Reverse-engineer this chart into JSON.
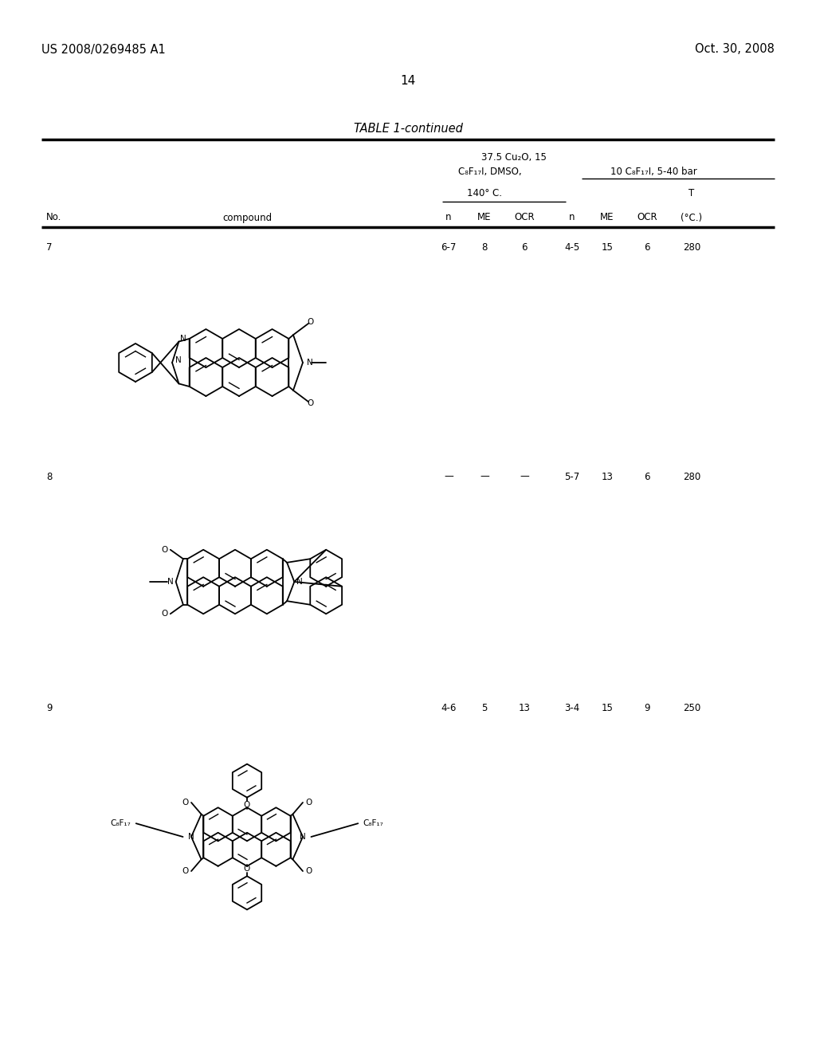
{
  "patent_left": "US 2008/0269485 A1",
  "patent_right": "Oct. 30, 2008",
  "page_number": "14",
  "table_title": "TABLE 1-continued",
  "header1": "37.5 Cu₂O, 15",
  "header2": "C₈F₁₇I, DMSO,",
  "header3": "10 C₈F₁₇I, 5-40 bar",
  "header4": "140° C.",
  "header5": "T",
  "col_no": "No.",
  "col_compound": "compound",
  "col_n": "n",
  "col_ME": "ME",
  "col_OCR": "OCR",
  "col_T": "(°C.)",
  "row7_no": "7",
  "row7_data": [
    "6-7",
    "8",
    "6",
    "4-5",
    "15",
    "6",
    "280"
  ],
  "row8_no": "8",
  "row8_data": [
    "—",
    "—",
    "—",
    "5-7",
    "13",
    "6",
    "280"
  ],
  "row9_no": "9",
  "row9_data": [
    "4-6",
    "5",
    "13",
    "3-4",
    "15",
    "9",
    "250"
  ],
  "bg_color": "#ffffff",
  "text_color": "#000000"
}
